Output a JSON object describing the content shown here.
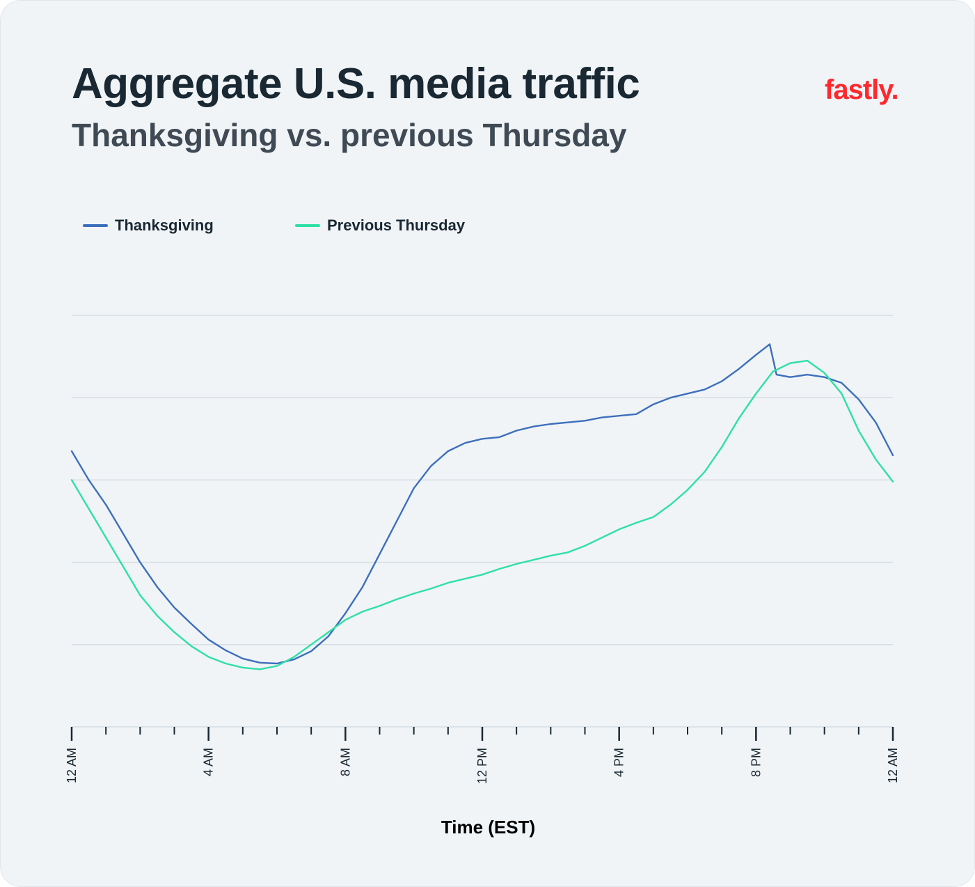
{
  "title": "Aggregate U.S. media traffic",
  "subtitle": "Thanksgiving vs. previous Thursday",
  "brand": {
    "logo_text": "fastly.",
    "color": "#ff282d"
  },
  "legend": [
    {
      "label": "Thanksgiving",
      "color": "#3d6fbc"
    },
    {
      "label": "Previous Thursday",
      "color": "#2fe0a4"
    }
  ],
  "chart_data": {
    "type": "line",
    "title": "Aggregate U.S. media traffic",
    "subtitle": "Thanksgiving vs. previous Thursday",
    "xlabel": "Time (EST)",
    "ylabel": "",
    "x_unit": "hours since 12 AM",
    "xlim": [
      0,
      24
    ],
    "x_tick_labels": [
      {
        "x": 0,
        "label": "12 AM"
      },
      {
        "x": 4,
        "label": "4 AM"
      },
      {
        "x": 8,
        "label": "8 AM"
      },
      {
        "x": 12,
        "label": "12 PM"
      },
      {
        "x": 16,
        "label": "4 PM"
      },
      {
        "x": 20,
        "label": "8 PM"
      },
      {
        "x": 24,
        "label": "12 AM"
      }
    ],
    "x_minor_tick_step": 1,
    "ylim": [
      0,
      5
    ],
    "y_gridlines": [
      1,
      2,
      3,
      4,
      5
    ],
    "y_tick_labels_shown": false,
    "grid": true,
    "legend_position": "top-left",
    "series": [
      {
        "name": "Thanksgiving",
        "color": "#3d6fbc",
        "points": [
          [
            0,
            3.35
          ],
          [
            0.5,
            3.0
          ],
          [
            1,
            2.7
          ],
          [
            1.5,
            2.35
          ],
          [
            2,
            2.0
          ],
          [
            2.5,
            1.7
          ],
          [
            3,
            1.45
          ],
          [
            3.5,
            1.25
          ],
          [
            4,
            1.06
          ],
          [
            4.5,
            0.93
          ],
          [
            5,
            0.83
          ],
          [
            5.5,
            0.78
          ],
          [
            6,
            0.77
          ],
          [
            6.5,
            0.82
          ],
          [
            7,
            0.92
          ],
          [
            7.5,
            1.1
          ],
          [
            8,
            1.38
          ],
          [
            8.5,
            1.7
          ],
          [
            9,
            2.1
          ],
          [
            9.5,
            2.5
          ],
          [
            10,
            2.9
          ],
          [
            10.5,
            3.17
          ],
          [
            11,
            3.35
          ],
          [
            11.5,
            3.45
          ],
          [
            12,
            3.5
          ],
          [
            12.5,
            3.52
          ],
          [
            13,
            3.6
          ],
          [
            13.5,
            3.65
          ],
          [
            14,
            3.68
          ],
          [
            14.5,
            3.7
          ],
          [
            15,
            3.72
          ],
          [
            15.5,
            3.76
          ],
          [
            16,
            3.78
          ],
          [
            16.5,
            3.8
          ],
          [
            17,
            3.92
          ],
          [
            17.5,
            4.0
          ],
          [
            18,
            4.05
          ],
          [
            18.5,
            4.1
          ],
          [
            19,
            4.2
          ],
          [
            19.5,
            4.35
          ],
          [
            20,
            4.52
          ],
          [
            20.4,
            4.65
          ],
          [
            20.6,
            4.28
          ],
          [
            21,
            4.25
          ],
          [
            21.5,
            4.28
          ],
          [
            22,
            4.25
          ],
          [
            22.5,
            4.18
          ],
          [
            23,
            3.98
          ],
          [
            23.5,
            3.7
          ],
          [
            24,
            3.3
          ]
        ]
      },
      {
        "name": "Previous Thursday",
        "color": "#2fe0a4",
        "points": [
          [
            0,
            3.0
          ],
          [
            0.5,
            2.65
          ],
          [
            1,
            2.3
          ],
          [
            1.5,
            1.95
          ],
          [
            2,
            1.6
          ],
          [
            2.5,
            1.35
          ],
          [
            3,
            1.15
          ],
          [
            3.5,
            0.98
          ],
          [
            4,
            0.85
          ],
          [
            4.5,
            0.77
          ],
          [
            5,
            0.72
          ],
          [
            5.5,
            0.7
          ],
          [
            6,
            0.74
          ],
          [
            6.5,
            0.85
          ],
          [
            7,
            1.0
          ],
          [
            7.5,
            1.15
          ],
          [
            8,
            1.3
          ],
          [
            8.5,
            1.4
          ],
          [
            9,
            1.47
          ],
          [
            9.5,
            1.55
          ],
          [
            10,
            1.62
          ],
          [
            10.5,
            1.68
          ],
          [
            11,
            1.75
          ],
          [
            11.5,
            1.8
          ],
          [
            12,
            1.85
          ],
          [
            12.5,
            1.92
          ],
          [
            13,
            1.98
          ],
          [
            13.5,
            2.03
          ],
          [
            14,
            2.08
          ],
          [
            14.5,
            2.12
          ],
          [
            15,
            2.2
          ],
          [
            15.5,
            2.3
          ],
          [
            16,
            2.4
          ],
          [
            16.5,
            2.48
          ],
          [
            17,
            2.55
          ],
          [
            17.5,
            2.7
          ],
          [
            18,
            2.88
          ],
          [
            18.5,
            3.1
          ],
          [
            19,
            3.4
          ],
          [
            19.5,
            3.75
          ],
          [
            20,
            4.05
          ],
          [
            20.5,
            4.32
          ],
          [
            21,
            4.42
          ],
          [
            21.5,
            4.45
          ],
          [
            22,
            4.3
          ],
          [
            22.5,
            4.05
          ],
          [
            23,
            3.6
          ],
          [
            23.5,
            3.25
          ],
          [
            24,
            2.98
          ]
        ]
      }
    ]
  }
}
